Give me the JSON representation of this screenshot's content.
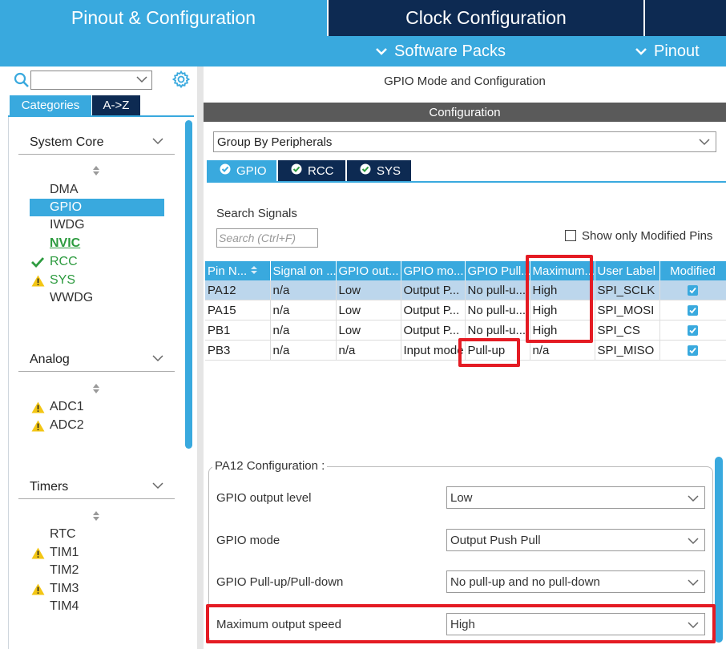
{
  "top_tabs": {
    "pinout": "Pinout & Configuration",
    "clock": "Clock Configuration"
  },
  "sub_menu": {
    "software_packs": "Software Packs",
    "pinout": "Pinout"
  },
  "left": {
    "search_value": "",
    "tabs": {
      "categories": "Categories",
      "az": "A->Z"
    },
    "sections": [
      {
        "title": "System Core",
        "items": [
          "DMA",
          "GPIO",
          "IWDG",
          "NVIC",
          "RCC",
          "SYS",
          "WWDG"
        ]
      },
      {
        "title": "Analog",
        "items": [
          "ADC1",
          "ADC2"
        ]
      },
      {
        "title": "Timers",
        "items": [
          "RTC",
          "TIM1",
          "TIM2",
          "TIM3",
          "TIM4"
        ]
      }
    ]
  },
  "main": {
    "title": "GPIO Mode and Configuration",
    "config_header": "Configuration",
    "group_by": "Group By Peripherals",
    "peripheral_tabs": [
      "GPIO",
      "RCC",
      "SYS"
    ],
    "search_label": "Search Signals",
    "search_placeholder": "Search (Ctrl+F)",
    "show_modified_label": "Show only Modified Pins",
    "table": {
      "headers": [
        "Pin N...",
        "Signal on ...",
        "GPIO out...",
        "GPIO mo...",
        "GPIO Pull...",
        "Maximum...",
        "User Label",
        "Modified"
      ],
      "rows": [
        [
          "PA12",
          "n/a",
          "Low",
          "Output P...",
          "No pull-u...",
          "High",
          "SPI_SCLK"
        ],
        [
          "PA15",
          "n/a",
          "Low",
          "Output P...",
          "No pull-u...",
          "High",
          "SPI_MOSI"
        ],
        [
          "PB1",
          "n/a",
          "Low",
          "Output P...",
          "No pull-u...",
          "High",
          "SPI_CS"
        ],
        [
          "PB3",
          "n/a",
          "n/a",
          "Input mode",
          "Pull-up",
          "n/a",
          "SPI_MISO"
        ]
      ]
    },
    "pin_config": {
      "legend": "PA12 Configuration :",
      "fields": [
        {
          "label": "GPIO output level",
          "value": "Low"
        },
        {
          "label": "GPIO mode",
          "value": "Output Push Pull"
        },
        {
          "label": "GPIO Pull-up/Pull-down",
          "value": "No pull-up and no pull-down"
        },
        {
          "label": "Maximum output speed",
          "value": "High"
        }
      ]
    }
  },
  "colors": {
    "accent": "#39a9de",
    "dark_tab": "#0d2a52",
    "highlight": "#e41b23",
    "warning": "#f3c614",
    "ok": "#2d9b3f"
  }
}
